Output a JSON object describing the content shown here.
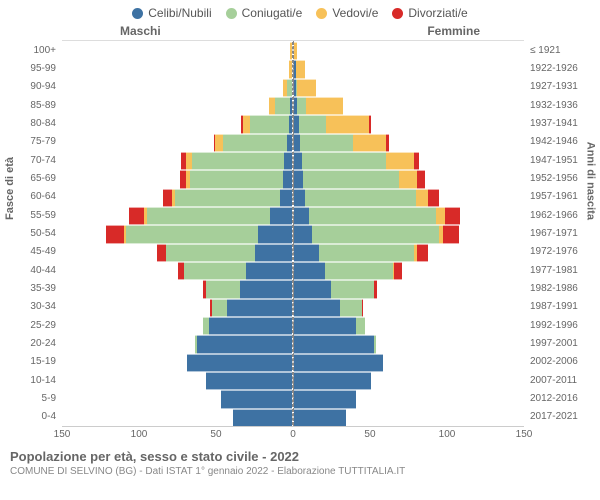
{
  "legend": [
    {
      "label": "Celibi/Nubili",
      "color": "#3e72a3"
    },
    {
      "label": "Coniugati/e",
      "color": "#a6cf9a"
    },
    {
      "label": "Vedovi/e",
      "color": "#f7c159"
    },
    {
      "label": "Divorziati/e",
      "color": "#d82a28"
    }
  ],
  "side_titles": {
    "male": "Maschi",
    "female": "Femmine"
  },
  "y_titles": {
    "left": "Fasce di età",
    "right": "Anni di nascita"
  },
  "x_axis": {
    "max": 150,
    "ticks": [
      150,
      100,
      50,
      0,
      50,
      100,
      150
    ]
  },
  "colors": {
    "single": "#3e72a3",
    "married": "#a6cf9a",
    "widowed": "#f7c159",
    "divorced": "#d82a28",
    "background": "#ffffff",
    "text": "#555555",
    "grid": "#dddddd"
  },
  "footer": {
    "title": "Popolazione per età, sesso e stato civile - 2022",
    "subtitle": "COMUNE DI SELVINO (BG) - Dati ISTAT 1° gennaio 2022 - Elaborazione TUTTITALIA.IT"
  },
  "rows": [
    {
      "age": "100+",
      "birth": "≤ 1921",
      "m": {
        "single": 0,
        "married": 0,
        "widowed": 1,
        "divorced": 0
      },
      "f": {
        "single": 0,
        "married": 0,
        "widowed": 2,
        "divorced": 0
      }
    },
    {
      "age": "95-99",
      "birth": "1922-1926",
      "m": {
        "single": 0,
        "married": 0,
        "widowed": 2,
        "divorced": 0
      },
      "f": {
        "single": 1,
        "married": 0,
        "widowed": 6,
        "divorced": 0
      }
    },
    {
      "age": "90-94",
      "birth": "1927-1931",
      "m": {
        "single": 0,
        "married": 3,
        "widowed": 3,
        "divorced": 0
      },
      "f": {
        "single": 1,
        "married": 1,
        "widowed": 12,
        "divorced": 0
      }
    },
    {
      "age": "85-89",
      "birth": "1932-1936",
      "m": {
        "single": 1,
        "married": 10,
        "widowed": 4,
        "divorced": 0
      },
      "f": {
        "single": 2,
        "married": 6,
        "widowed": 24,
        "divorced": 0
      }
    },
    {
      "age": "80-84",
      "birth": "1937-1941",
      "m": {
        "single": 2,
        "married": 25,
        "widowed": 5,
        "divorced": 1
      },
      "f": {
        "single": 3,
        "married": 18,
        "widowed": 28,
        "divorced": 1
      }
    },
    {
      "age": "75-79",
      "birth": "1942-1946",
      "m": {
        "single": 3,
        "married": 42,
        "widowed": 5,
        "divorced": 1
      },
      "f": {
        "single": 4,
        "married": 34,
        "widowed": 22,
        "divorced": 2
      }
    },
    {
      "age": "70-74",
      "birth": "1947-1951",
      "m": {
        "single": 5,
        "married": 60,
        "widowed": 4,
        "divorced": 3
      },
      "f": {
        "single": 5,
        "married": 55,
        "widowed": 18,
        "divorced": 3
      }
    },
    {
      "age": "65-69",
      "birth": "1952-1956",
      "m": {
        "single": 6,
        "married": 60,
        "widowed": 3,
        "divorced": 4
      },
      "f": {
        "single": 6,
        "married": 62,
        "widowed": 12,
        "divorced": 5
      }
    },
    {
      "age": "60-64",
      "birth": "1957-1961",
      "m": {
        "single": 8,
        "married": 68,
        "widowed": 2,
        "divorced": 6
      },
      "f": {
        "single": 7,
        "married": 72,
        "widowed": 8,
        "divorced": 7
      }
    },
    {
      "age": "55-59",
      "birth": "1962-1966",
      "m": {
        "single": 14,
        "married": 80,
        "widowed": 2,
        "divorced": 10
      },
      "f": {
        "single": 10,
        "married": 82,
        "widowed": 6,
        "divorced": 10
      }
    },
    {
      "age": "50-54",
      "birth": "1967-1971",
      "m": {
        "single": 22,
        "married": 86,
        "widowed": 1,
        "divorced": 12
      },
      "f": {
        "single": 12,
        "married": 82,
        "widowed": 3,
        "divorced": 10
      }
    },
    {
      "age": "45-49",
      "birth": "1972-1976",
      "m": {
        "single": 24,
        "married": 58,
        "widowed": 0,
        "divorced": 6
      },
      "f": {
        "single": 16,
        "married": 62,
        "widowed": 2,
        "divorced": 7
      }
    },
    {
      "age": "40-44",
      "birth": "1977-1981",
      "m": {
        "single": 30,
        "married": 40,
        "widowed": 0,
        "divorced": 4
      },
      "f": {
        "single": 20,
        "married": 44,
        "widowed": 1,
        "divorced": 5
      }
    },
    {
      "age": "35-39",
      "birth": "1982-1986",
      "m": {
        "single": 34,
        "married": 22,
        "widowed": 0,
        "divorced": 2
      },
      "f": {
        "single": 24,
        "married": 28,
        "widowed": 0,
        "divorced": 2
      }
    },
    {
      "age": "30-34",
      "birth": "1987-1991",
      "m": {
        "single": 42,
        "married": 10,
        "widowed": 0,
        "divorced": 1
      },
      "f": {
        "single": 30,
        "married": 14,
        "widowed": 0,
        "divorced": 1
      }
    },
    {
      "age": "25-29",
      "birth": "1992-1996",
      "m": {
        "single": 54,
        "married": 4,
        "widowed": 0,
        "divorced": 0
      },
      "f": {
        "single": 40,
        "married": 6,
        "widowed": 0,
        "divorced": 0
      }
    },
    {
      "age": "20-24",
      "birth": "1997-2001",
      "m": {
        "single": 62,
        "married": 1,
        "widowed": 0,
        "divorced": 0
      },
      "f": {
        "single": 52,
        "married": 1,
        "widowed": 0,
        "divorced": 0
      }
    },
    {
      "age": "15-19",
      "birth": "2002-2006",
      "m": {
        "single": 68,
        "married": 0,
        "widowed": 0,
        "divorced": 0
      },
      "f": {
        "single": 58,
        "married": 0,
        "widowed": 0,
        "divorced": 0
      }
    },
    {
      "age": "10-14",
      "birth": "2007-2011",
      "m": {
        "single": 56,
        "married": 0,
        "widowed": 0,
        "divorced": 0
      },
      "f": {
        "single": 50,
        "married": 0,
        "widowed": 0,
        "divorced": 0
      }
    },
    {
      "age": "5-9",
      "birth": "2012-2016",
      "m": {
        "single": 46,
        "married": 0,
        "widowed": 0,
        "divorced": 0
      },
      "f": {
        "single": 40,
        "married": 0,
        "widowed": 0,
        "divorced": 0
      }
    },
    {
      "age": "0-4",
      "birth": "2017-2021",
      "m": {
        "single": 38,
        "married": 0,
        "widowed": 0,
        "divorced": 0
      },
      "f": {
        "single": 34,
        "married": 0,
        "widowed": 0,
        "divorced": 0
      }
    }
  ]
}
